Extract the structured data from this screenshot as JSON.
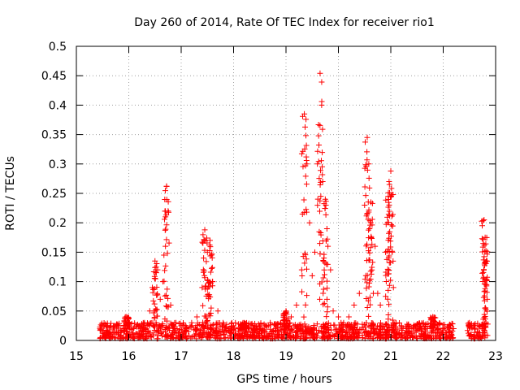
{
  "chart_data": {
    "type": "scatter",
    "title": "Day 260 of 2014, Rate Of TEC Index for receiver rio1",
    "xlabel": "GPS time / hours",
    "ylabel": "ROTI / TECUs",
    "xlim": [
      15,
      23
    ],
    "ylim": [
      0,
      0.5
    ],
    "grid": true,
    "marker": "plus",
    "color": "#ff0000",
    "x_ticks": [
      15,
      16,
      17,
      18,
      19,
      20,
      21,
      22,
      23
    ],
    "x_tick_labels": [
      "15",
      "16",
      "17",
      "18",
      "19",
      "20",
      "21",
      "22",
      "23"
    ],
    "y_ticks": [
      0,
      0.05,
      0.1,
      0.15,
      0.2,
      0.25,
      0.3,
      0.35,
      0.4,
      0.45,
      0.5
    ],
    "y_tick_labels": [
      "0",
      "0.05",
      "0.1",
      "0.15",
      "0.2",
      "0.25",
      "0.3",
      "0.35",
      "0.4",
      "0.45",
      "0.5"
    ],
    "background_band": {
      "x_ranges": [
        [
          15.45,
          22.2
        ],
        [
          22.45,
          22.85
        ]
      ],
      "y_range": [
        0.003,
        0.03
      ]
    },
    "peaks": [
      {
        "x": 15.95,
        "y": 0.04
      },
      {
        "x": 16.5,
        "y": 0.135
      },
      {
        "x": 16.72,
        "y": 0.262
      },
      {
        "x": 17.45,
        "y": 0.188
      },
      {
        "x": 17.55,
        "y": 0.17
      },
      {
        "x": 18.2,
        "y": 0.03
      },
      {
        "x": 19.0,
        "y": 0.05
      },
      {
        "x": 19.35,
        "y": 0.385
      },
      {
        "x": 19.65,
        "y": 0.454
      },
      {
        "x": 19.75,
        "y": 0.24
      },
      {
        "x": 20.55,
        "y": 0.345
      },
      {
        "x": 20.62,
        "y": 0.235
      },
      {
        "x": 20.95,
        "y": 0.245
      },
      {
        "x": 21.0,
        "y": 0.288
      },
      {
        "x": 21.8,
        "y": 0.04
      },
      {
        "x": 22.78,
        "y": 0.205
      },
      {
        "x": 22.8,
        "y": 0.175
      }
    ],
    "series": [
      {
        "name": "rio1",
        "points": [
          [
            15.5,
            0.012
          ],
          [
            15.6,
            0.015
          ],
          [
            15.7,
            0.018
          ],
          [
            15.8,
            0.014
          ],
          [
            15.9,
            0.02
          ],
          [
            15.95,
            0.04
          ],
          [
            16.0,
            0.03
          ],
          [
            16.1,
            0.022
          ],
          [
            16.2,
            0.025
          ],
          [
            16.3,
            0.03
          ],
          [
            16.4,
            0.05
          ],
          [
            16.45,
            0.09
          ],
          [
            16.5,
            0.135
          ],
          [
            16.55,
            0.12
          ],
          [
            16.6,
            0.07
          ],
          [
            16.65,
            0.1
          ],
          [
            16.7,
            0.16
          ],
          [
            16.72,
            0.262
          ],
          [
            16.75,
            0.22
          ],
          [
            16.8,
            0.06
          ],
          [
            16.9,
            0.03
          ],
          [
            17.0,
            0.025
          ],
          [
            17.1,
            0.02
          ],
          [
            17.2,
            0.03
          ],
          [
            17.3,
            0.04
          ],
          [
            17.4,
            0.09
          ],
          [
            17.45,
            0.188
          ],
          [
            17.5,
            0.15
          ],
          [
            17.55,
            0.17
          ],
          [
            17.6,
            0.1
          ],
          [
            17.7,
            0.05
          ],
          [
            17.8,
            0.03
          ],
          [
            17.9,
            0.02
          ],
          [
            18.0,
            0.025
          ],
          [
            18.1,
            0.02
          ],
          [
            18.2,
            0.03
          ],
          [
            18.3,
            0.022
          ],
          [
            18.4,
            0.018
          ],
          [
            18.5,
            0.02
          ],
          [
            18.6,
            0.025
          ],
          [
            18.7,
            0.03
          ],
          [
            18.8,
            0.025
          ],
          [
            18.9,
            0.03
          ],
          [
            19.0,
            0.05
          ],
          [
            19.1,
            0.04
          ],
          [
            19.2,
            0.06
          ],
          [
            19.3,
            0.12
          ],
          [
            19.35,
            0.385
          ],
          [
            19.4,
            0.3
          ],
          [
            19.45,
            0.2
          ],
          [
            19.5,
            0.11
          ],
          [
            19.55,
            0.15
          ],
          [
            19.6,
            0.3
          ],
          [
            19.65,
            0.454
          ],
          [
            19.68,
            0.4
          ],
          [
            19.7,
            0.27
          ],
          [
            19.75,
            0.24
          ],
          [
            19.8,
            0.16
          ],
          [
            19.85,
            0.12
          ],
          [
            19.9,
            0.05
          ],
          [
            20.0,
            0.04
          ],
          [
            20.1,
            0.03
          ],
          [
            20.2,
            0.04
          ],
          [
            20.3,
            0.06
          ],
          [
            20.4,
            0.08
          ],
          [
            20.5,
            0.23
          ],
          [
            20.55,
            0.345
          ],
          [
            20.58,
            0.3
          ],
          [
            20.62,
            0.235
          ],
          [
            20.7,
            0.16
          ],
          [
            20.75,
            0.08
          ],
          [
            20.8,
            0.06
          ],
          [
            20.9,
            0.15
          ],
          [
            20.95,
            0.245
          ],
          [
            21.0,
            0.288
          ],
          [
            21.05,
            0.09
          ],
          [
            21.1,
            0.03
          ],
          [
            21.2,
            0.025
          ],
          [
            21.3,
            0.02
          ],
          [
            21.4,
            0.02
          ],
          [
            21.5,
            0.022
          ],
          [
            21.6,
            0.018
          ],
          [
            21.7,
            0.02
          ],
          [
            21.8,
            0.04
          ],
          [
            21.9,
            0.02
          ],
          [
            22.0,
            0.02
          ],
          [
            22.1,
            0.018
          ],
          [
            22.2,
            0.02
          ],
          [
            22.5,
            0.03
          ],
          [
            22.6,
            0.02
          ],
          [
            22.7,
            0.025
          ],
          [
            22.78,
            0.205
          ],
          [
            22.8,
            0.175
          ]
        ]
      }
    ]
  }
}
